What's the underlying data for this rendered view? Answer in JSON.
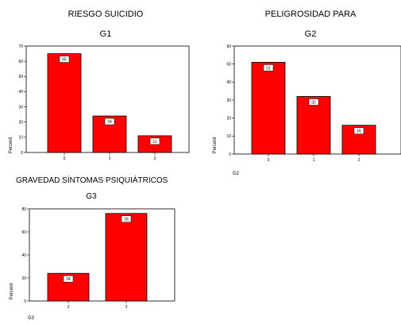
{
  "chart_data": [
    {
      "type": "bar",
      "title": "RIESGO SUICIDIO",
      "subtitle": "G1",
      "ylabel": "Percent",
      "xlabel": "",
      "footer": "",
      "categories": [
        "0",
        "1",
        "2"
      ],
      "values": [
        65,
        24,
        11
      ],
      "ylim": [
        0,
        70
      ],
      "yticks": [
        0,
        10,
        20,
        30,
        40,
        50,
        60,
        70
      ],
      "color": "#ff0000",
      "grid": false
    },
    {
      "type": "bar",
      "title": "PELIGROSIDAD PARA",
      "subtitle": "G2",
      "ylabel": "Percent",
      "xlabel": "",
      "footer": "G2",
      "categories": [
        "0",
        "1",
        "2"
      ],
      "values": [
        51,
        32,
        16
      ],
      "ylim": [
        0,
        60
      ],
      "yticks": [
        0,
        10,
        20,
        30,
        40,
        50,
        60
      ],
      "color": "#ff0000",
      "grid": false
    },
    {
      "type": "bar",
      "title": "GRAVEDAD SÍNTOMAS PSIQUIÁTRICOS",
      "subtitle": "G3",
      "ylabel": "Percent",
      "xlabel": "",
      "footer": "G3",
      "categories": [
        "2",
        "3"
      ],
      "values": [
        24,
        76
      ],
      "ylim": [
        0,
        80
      ],
      "yticks": [
        0,
        20,
        40,
        60,
        80
      ],
      "color": "#ff0000",
      "grid": false
    }
  ]
}
